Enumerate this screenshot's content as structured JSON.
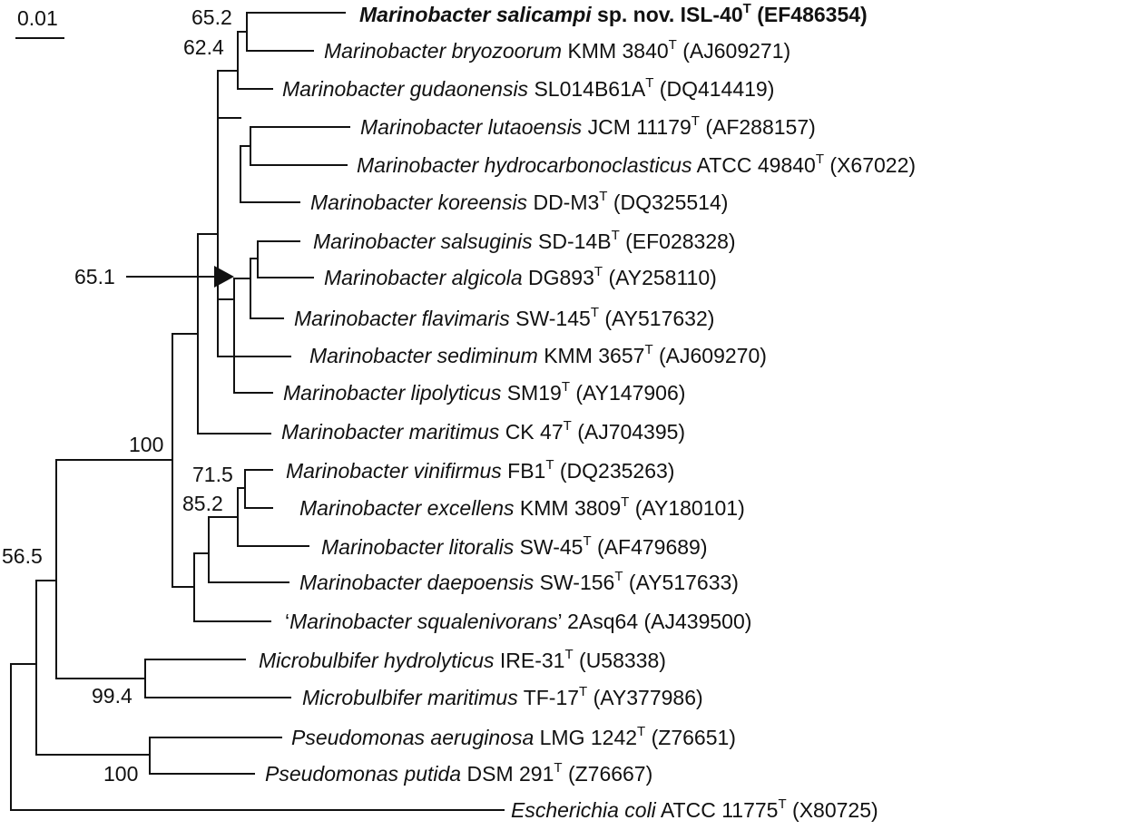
{
  "scale_bar": {
    "label": "0.01"
  },
  "taxa": [
    {
      "genus_species": "Marinobacter salicampi",
      "nov": " sp. nov.",
      "strain": "ISL-40",
      "type": true,
      "acc": "(EF486354)",
      "bold": true
    },
    {
      "genus_species": "Marinobacter bryozoorum",
      "strain": "KMM 3840",
      "type": true,
      "acc": "(AJ609271)"
    },
    {
      "genus_species": "Marinobacter gudaonensis",
      "strain": "SL014B61A",
      "type": true,
      "acc": "(DQ414419)"
    },
    {
      "genus_species": "Marinobacter lutaoensis",
      "strain": "JCM 11179",
      "type": true,
      "acc": "(AF288157)"
    },
    {
      "genus_species": "Marinobacter hydrocarbonoclasticus",
      "strain": "ATCC 49840",
      "type": true,
      "acc": "(X67022)"
    },
    {
      "genus_species": "Marinobacter koreensis",
      "strain": "DD-M3",
      "type": true,
      "acc": "(DQ325514)"
    },
    {
      "genus_species": "Marinobacter salsuginis",
      "strain": "SD-14B",
      "type": true,
      "acc": "(EF028328)"
    },
    {
      "genus_species": "Marinobacter algicola",
      "strain": "DG893",
      "type": true,
      "acc": "(AY258110)"
    },
    {
      "genus_species": "Marinobacter flavimaris",
      "strain": "SW-145",
      "type": true,
      "acc": "(AY517632)"
    },
    {
      "genus_species": "Marinobacter sediminum",
      "strain": "KMM 3657",
      "type": true,
      "acc": "(AJ609270)"
    },
    {
      "genus_species": "Marinobacter lipolyticus",
      "strain": "SM19",
      "type": true,
      "acc": "(AY147906)"
    },
    {
      "genus_species": "Marinobacter maritimus",
      "strain": "CK 47",
      "type": true,
      "acc": "(AJ704395)"
    },
    {
      "genus_species": "Marinobacter vinifirmus",
      "strain": "FB1",
      "type": true,
      "acc": "(DQ235263)"
    },
    {
      "genus_species": "Marinobacter excellens",
      "strain": "KMM 3809",
      "type": true,
      "acc": "(AY180101)"
    },
    {
      "genus_species": "Marinobacter litoralis",
      "strain": "SW-45",
      "type": true,
      "acc": "(AF479689)"
    },
    {
      "genus_species": "Marinobacter daepoensis",
      "strain": "SW-156",
      "type": true,
      "acc": "(AY517633)"
    },
    {
      "genus_species": "Marinobacter squalenivorans",
      "quoted": true,
      "strain": "2Asq64",
      "type": false,
      "acc": "(AJ439500)"
    },
    {
      "genus_species": "Microbulbifer hydrolyticus",
      "strain": "IRE-31",
      "type": true,
      "acc": "(U58338)"
    },
    {
      "genus_species": "Microbulbifer maritimus",
      "strain": "TF-17",
      "type": true,
      "acc": "(AY377986)"
    },
    {
      "genus_species": "Pseudomonas aeruginosa",
      "strain": "LMG 1242",
      "type": true,
      "acc": "(Z76651)"
    },
    {
      "genus_species": "Pseudomonas putida",
      "strain": "DSM 291",
      "type": true,
      "acc": "(Z76667)"
    },
    {
      "genus_species": "Escherichia coli",
      "strain": "ATCC 11775",
      "type": true,
      "acc": "(X80725)"
    }
  ],
  "type_superscript": "T",
  "quote_open": "‘",
  "quote_close": "’",
  "bootstrap": {
    "salicampi_bryozoorum": "65.2",
    "salicampi_gudaonensis": "62.4",
    "main_marinobacter_node": "65.1",
    "marinobacter_genus": "100",
    "vinifirmus_excellens": "71.5",
    "vinifirmus_litoralis": "85.2",
    "marinobacter_microbulbifer": "56.5",
    "microbulbifer": "99.4",
    "pseudomonas": "100"
  }
}
